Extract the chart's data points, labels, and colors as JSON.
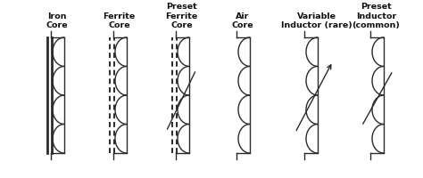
{
  "background_color": "#ffffff",
  "line_color": "#2a2a2a",
  "labels": [
    "Iron\nCore",
    "Ferrite\nCore",
    "Preset\nFerrite\nCore",
    "Air\nCore",
    "Variable\nInductor (rare)",
    "Preset\nInductor\n(common)"
  ],
  "figsize": [
    4.74,
    2.0
  ],
  "dpi": 100
}
